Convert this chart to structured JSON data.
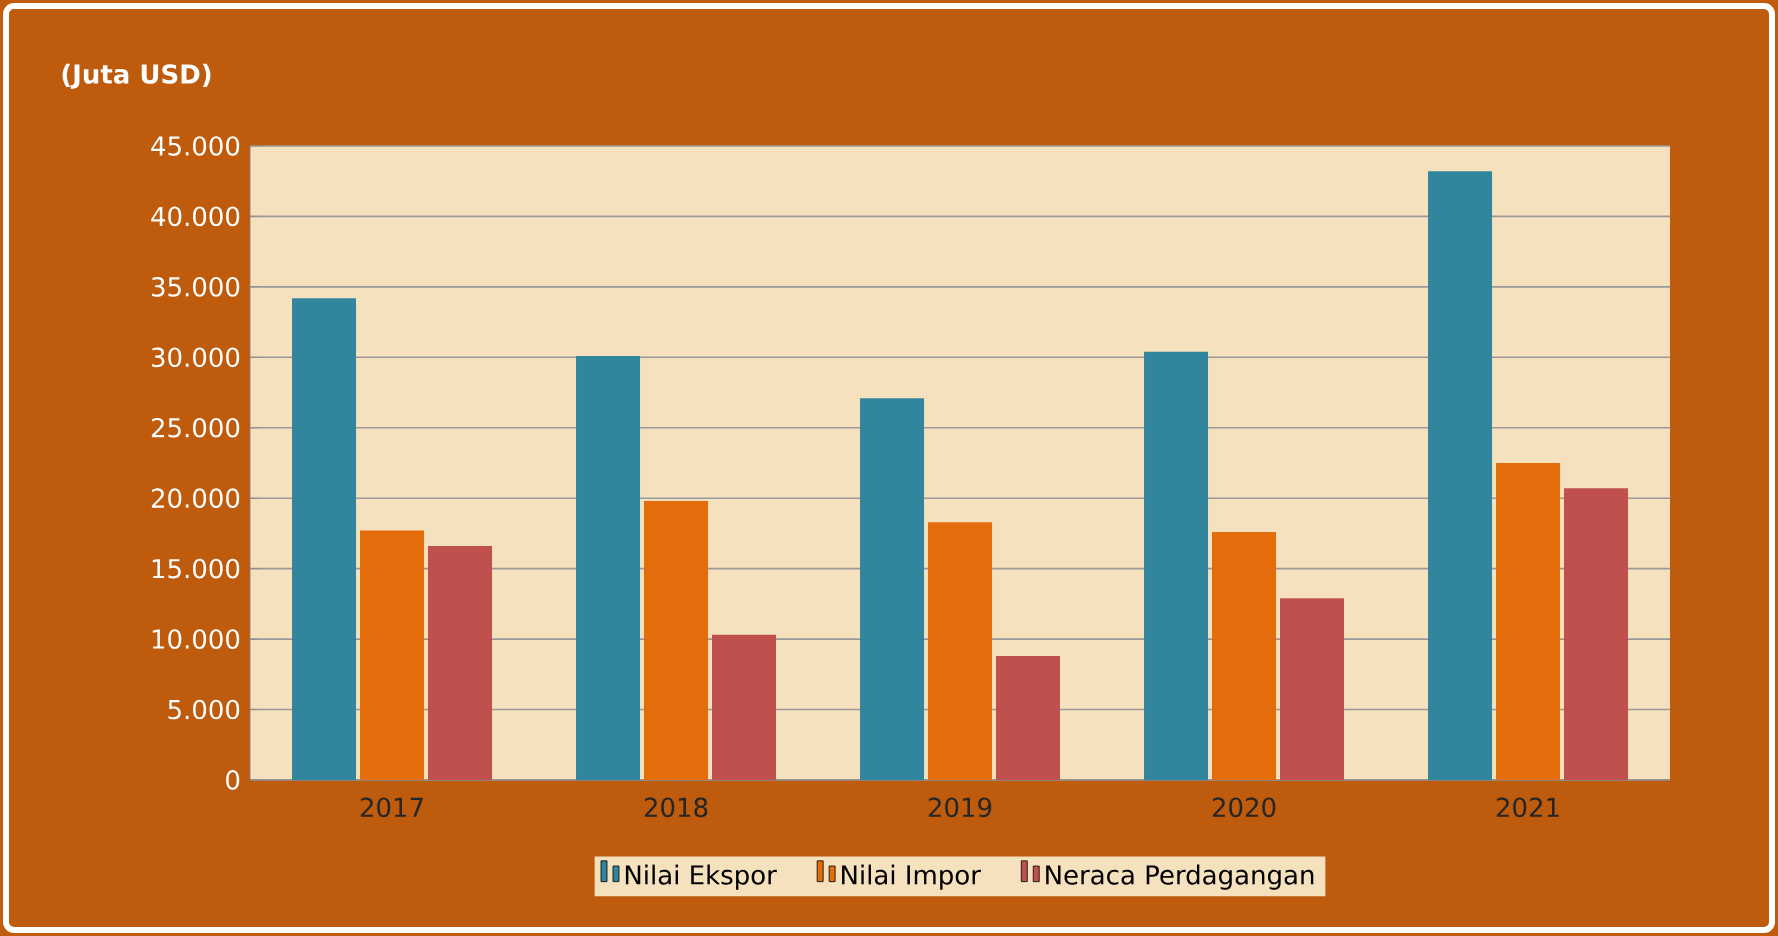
{
  "chart_data": {
    "type": "bar",
    "ylabel": "(Juta USD)",
    "categories": [
      "2017",
      "2018",
      "2019",
      "2020",
      "2021"
    ],
    "series": [
      {
        "name": "Nilai Ekspor",
        "color": "#31859c",
        "values": [
          34200,
          30100,
          27100,
          30400,
          43200
        ]
      },
      {
        "name": "Nilai Impor",
        "color": "#e46c0a",
        "values": [
          17700,
          19800,
          18300,
          17600,
          22500
        ]
      },
      {
        "name": "Neraca Perdagangan",
        "color": "#c0504d",
        "values": [
          16600,
          10300,
          8800,
          12900,
          20700
        ]
      }
    ],
    "ylim": [
      0,
      45000
    ],
    "yticks": [
      {
        "value": 0,
        "label": "0"
      },
      {
        "value": 5000,
        "label": "5.000"
      },
      {
        "value": 10000,
        "label": "10.000"
      },
      {
        "value": 15000,
        "label": "15.000"
      },
      {
        "value": 20000,
        "label": "20.000"
      },
      {
        "value": 25000,
        "label": "25.000"
      },
      {
        "value": 30000,
        "label": "30.000"
      },
      {
        "value": 35000,
        "label": "35.000"
      },
      {
        "value": 40000,
        "label": "40.000"
      },
      {
        "value": 45000,
        "label": "45.000"
      }
    ],
    "grid": "y",
    "legend": "bottom"
  }
}
